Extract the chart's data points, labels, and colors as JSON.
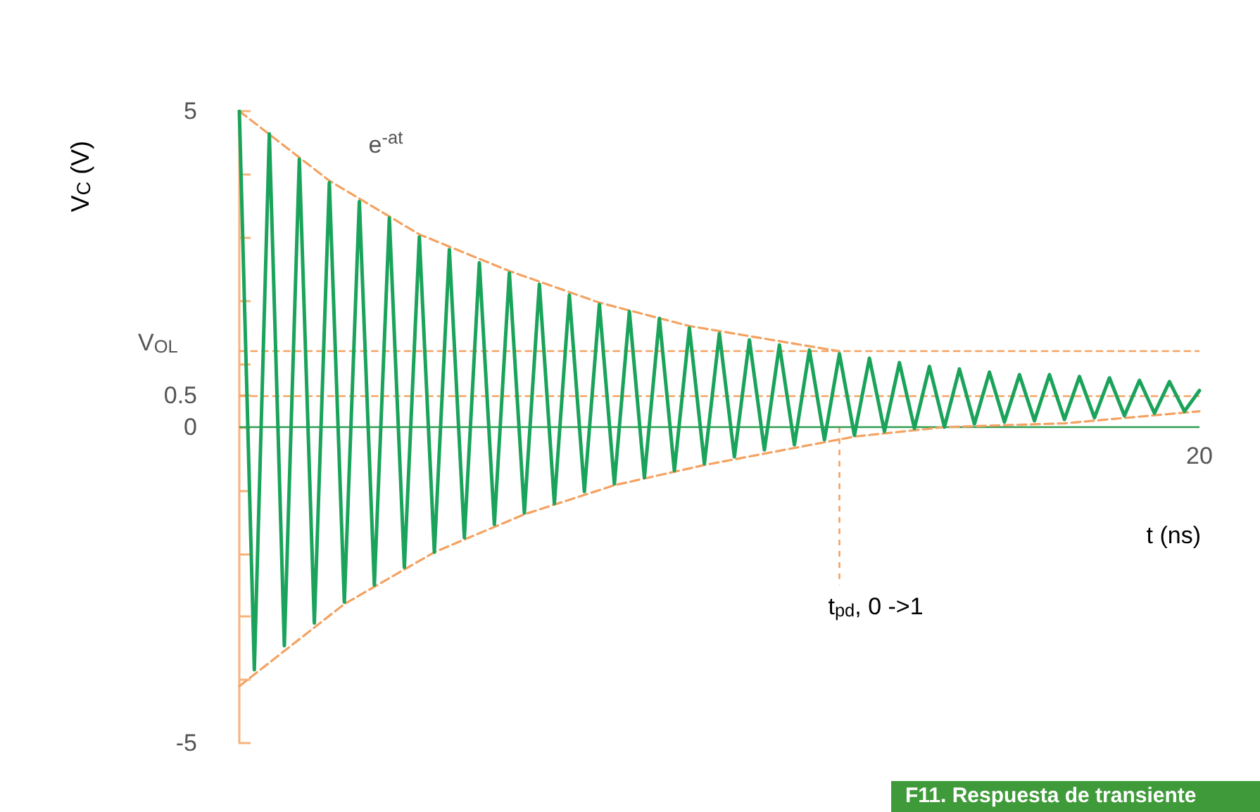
{
  "chart_data": {
    "type": "line",
    "ylabel": "V$_{C}$ (V)",
    "xlabel": "t (ns)",
    "categories": [
      null,
      null,
      null,
      null,
      null,
      null,
      null,
      null,
      null,
      null,
      null,
      null,
      null,
      null,
      null,
      null,
      null,
      null,
      null,
      null,
      null,
      null,
      null,
      null,
      null,
      null,
      null,
      null,
      null,
      null,
      null,
      null,
      null,
      null,
      null,
      null,
      null,
      null,
      null,
      null,
      null,
      null,
      null,
      null,
      null,
      null,
      null,
      null,
      null,
      null,
      null,
      null,
      null,
      null,
      null,
      null,
      null,
      null,
      null,
      null,
      null,
      null,
      null,
      null,
      "20"
    ],
    "ylim": [
      -5,
      5
    ],
    "yticks": [
      -5,
      {
        "value": -4,
        "label": null
      },
      {
        "value": -3,
        "label": null
      },
      {
        "value": -2,
        "label": null
      },
      {
        "value": -1,
        "label": null
      },
      0,
      0.5,
      {
        "value": 1,
        "label": null
      },
      {
        "value": 2,
        "label": null
      },
      {
        "value": 3,
        "label": null
      },
      {
        "value": 4,
        "label": null
      },
      5
    ],
    "grid": false,
    "marker": "none",
    "series": [
      {
        "color": "#1aa35a",
        "line_style": "solid",
        "values": [
          5,
          -3.84,
          4.64,
          -3.46,
          4.24,
          -3.1,
          3.87,
          -2.77,
          3.57,
          -2.5,
          3.31,
          -2.22,
          3.01,
          -1.98,
          2.81,
          -1.75,
          2.6,
          -1.54,
          2.44,
          -1.36,
          2.26,
          -1.21,
          2.09,
          -1.02,
          1.94,
          -0.9,
          1.83,
          -0.8,
          1.72,
          -0.69,
          1.57,
          -0.58,
          1.48,
          -0.47,
          1.38,
          -0.36,
          1.3,
          -0.28,
          1.22,
          -0.2,
          1.16,
          -0.13,
          1.09,
          -0.07,
          1.02,
          -0.02,
          0.96,
          0,
          0.92,
          0.05,
          0.87,
          0.08,
          0.83,
          0.1,
          0.83,
          0.12,
          0.8,
          0.15,
          0.78,
          0.18,
          0.74,
          0.22,
          0.72,
          0.25,
          0.58
        ]
      },
      {
        "name": "e$^{-at}$",
        "color": "#f4a261",
        "line_style": "dashed",
        "values": [
          5,
          null,
          null,
          null,
          null,
          null,
          3.9,
          null,
          null,
          null,
          null,
          null,
          3.05,
          null,
          null,
          null,
          null,
          null,
          2.47,
          null,
          null,
          null,
          null,
          null,
          1.97,
          null,
          null,
          null,
          null,
          null,
          1.6,
          null,
          null,
          null,
          null,
          null,
          null,
          null,
          null,
          null,
          1.2,
          null,
          null,
          null,
          null,
          null,
          null,
          null,
          null,
          null,
          null,
          null,
          null,
          null,
          null,
          null,
          null,
          null,
          null,
          null,
          null,
          null,
          null,
          null,
          null
        ]
      },
      {
        "color": "#f4a261",
        "line_style": "dashed",
        "values": [
          -4.1,
          null,
          null,
          null,
          null,
          null,
          null,
          -2.8,
          null,
          null,
          null,
          null,
          null,
          -1.98,
          null,
          null,
          null,
          null,
          null,
          -1.38,
          null,
          null,
          null,
          null,
          null,
          -0.92,
          null,
          null,
          null,
          null,
          null,
          -0.6,
          null,
          null,
          null,
          null,
          null,
          null,
          null,
          null,
          null,
          -0.15,
          null,
          null,
          null,
          null,
          null,
          0,
          null,
          null,
          null,
          null,
          null,
          null,
          null,
          0.06,
          null,
          null,
          null,
          null,
          null,
          null,
          null,
          null,
          0.25
        ]
      }
    ],
    "ref_lines": [
      {
        "axis": "y",
        "value": 0,
        "label": null,
        "color": "#2f9d4f",
        "line_style": "solid"
      },
      {
        "axis": "y",
        "value": 1.2,
        "label": "V$_{OL}$",
        "color": "#f4a261",
        "line_style": "dashed"
      },
      {
        "axis": "y",
        "value": 0.5,
        "label": null,
        "color": "#f4a261",
        "line_style": "dashed"
      }
    ],
    "annotations": [
      "t$_{pd}$, 0 ->1",
      "F11. Respuesta de transiente"
    ]
  }
}
